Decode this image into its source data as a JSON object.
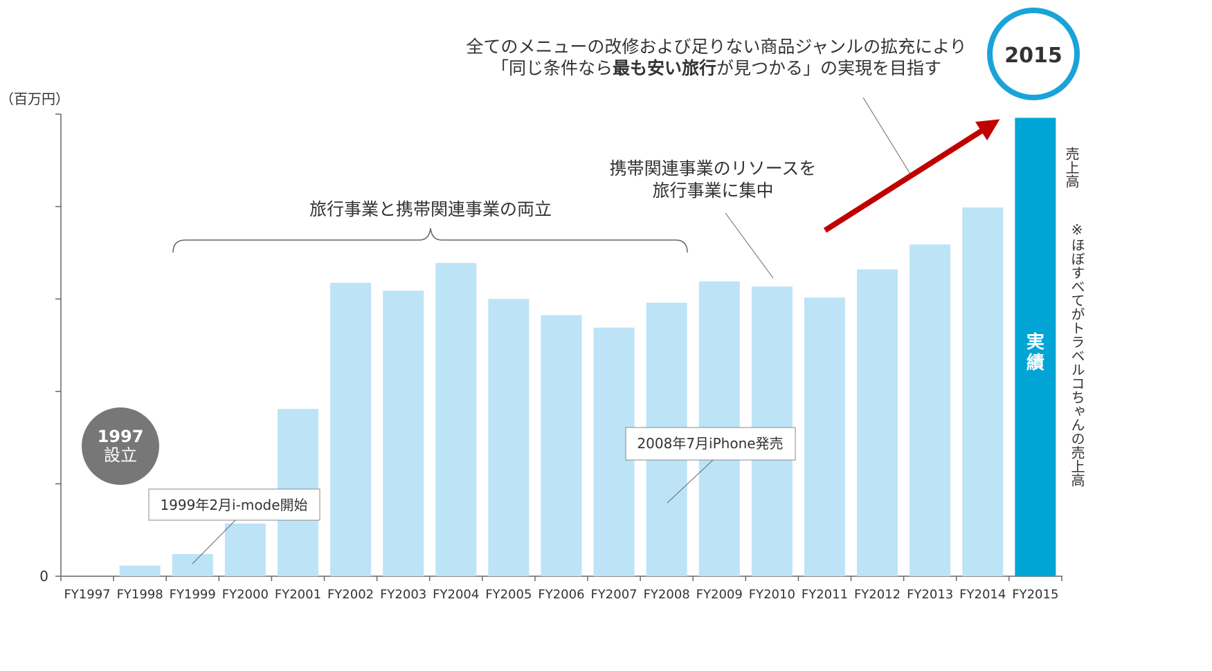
{
  "colors": {
    "bar": "#bde3f7",
    "bar_highlight": "#00a5d6",
    "arrow": "#c00000",
    "circle_2015": "#1aa3d9",
    "circle_1997": "#777777",
    "axis": "#666666",
    "text": "#333333"
  },
  "chart_data": {
    "type": "bar",
    "unit_label": "（百万円）",
    "categories": [
      "FY1997",
      "FY1998",
      "FY1999",
      "FY2000",
      "FY2001",
      "FY2002",
      "FY2003",
      "FY2004",
      "FY2005",
      "FY2006",
      "FY2007",
      "FY2008",
      "FY2009",
      "FY2010",
      "FY2011",
      "FY2012",
      "FY2013",
      "FY2014",
      "FY2015"
    ],
    "values": [
      0,
      2.3,
      4.8,
      11.4,
      36.2,
      63.5,
      61.8,
      67.8,
      60.0,
      56.5,
      53.8,
      59.2,
      63.8,
      62.7,
      60.3,
      66.4,
      71.8,
      79.8,
      99.2
    ],
    "highlight": "FY2015",
    "ylim": [
      0,
      100
    ],
    "y_tick_label_zero": "0",
    "highlight_label": [
      "実",
      "績"
    ],
    "side_label": "売上高",
    "footnote": "※ほぼすべてがトラベルコちゃんの売上高"
  },
  "annotations": {
    "badge_2015": "2015",
    "headline_line1": "全てのメニューの改修および足りない商品ジャンルの拡充により",
    "headline_line2_pre": "「同じ条件なら",
    "headline_line2_bold": "最も安い旅行",
    "headline_line2_post": "が見つかる」の実現を目指す",
    "brace_label": "旅行事業と携帯関連事業の両立",
    "focus_line1": "携帯関連事業のリソースを",
    "focus_line2": "旅行事業に集中",
    "founded_year": "1997",
    "founded_label": "設立",
    "imode_callout": "1999年2月i-mode開始",
    "iphone_callout": "2008年7月iPhone発売"
  }
}
